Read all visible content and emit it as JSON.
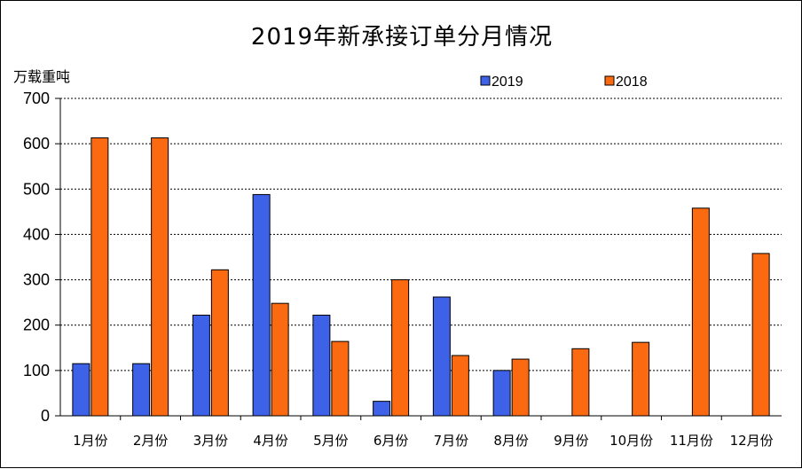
{
  "chart_data": {
    "type": "bar",
    "title": "2019年新承接订单分月情况",
    "ylabel": "万载重吨",
    "xlabel": "",
    "ylim": [
      0,
      700
    ],
    "yticks": [
      0,
      100,
      200,
      300,
      400,
      500,
      600,
      700
    ],
    "grid": true,
    "legend_position": "top-right",
    "categories": [
      "1月份",
      "2月份",
      "3月份",
      "4月份",
      "5月份",
      "6月份",
      "7月份",
      "8月份",
      "9月份",
      "10月份",
      "11月份",
      "12月份"
    ],
    "series": [
      {
        "name": "2019",
        "color": "#3d62e8",
        "values": [
          115,
          115,
          222,
          488,
          222,
          32,
          262,
          100,
          null,
          null,
          null,
          null
        ]
      },
      {
        "name": "2018",
        "color": "#fb6a10",
        "values": [
          613,
          613,
          322,
          248,
          164,
          300,
          133,
          125,
          148,
          162,
          458,
          358
        ]
      }
    ]
  }
}
